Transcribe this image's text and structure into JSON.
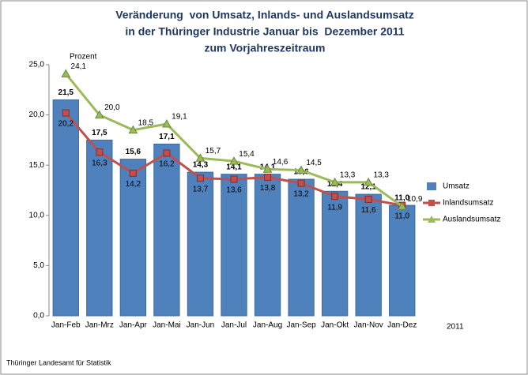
{
  "chart_data": {
    "type": "bar",
    "title": [
      "Veränderung  von Umsatz, Inlands- und Auslandsumsatz",
      "in der Thüringer Industrie Januar bis  Dezember 2011",
      "zum Vorjahreszeitraum"
    ],
    "y_label": "Prozent",
    "x_label": "2011",
    "source": "Thüringer Landesamt für Statistik",
    "categories": [
      "Jan-Feb",
      "Jan-Mrz",
      "Jan-Apr",
      "Jan-Mai",
      "Jan-Jun",
      "Jan-Jul",
      "Jan-Aug",
      "Jan-Sep",
      "Jan-Okt",
      "Jan-Nov",
      "Jan-Dez"
    ],
    "series": [
      {
        "name": "Umsatz",
        "type": "bar",
        "color": "#4f81bd",
        "values": [
          21.5,
          17.5,
          15.6,
          17.1,
          14.3,
          14.1,
          14.1,
          13.6,
          12.4,
          12.1,
          11.0
        ],
        "value_labels": [
          "21,5",
          "17,5",
          "15,6",
          "17,1",
          "14,3",
          "14,1",
          "14,1",
          "13,6",
          "12,4",
          "12,1",
          "11,0"
        ]
      },
      {
        "name": "Inlandsumsatz",
        "type": "line",
        "marker": "square",
        "color": "#c0504d",
        "values": [
          20.2,
          16.3,
          14.2,
          16.2,
          13.7,
          13.6,
          13.8,
          13.2,
          11.9,
          11.6,
          11.0
        ],
        "value_labels": [
          "20,2",
          "16,3",
          "14,2",
          "16,2",
          "13,7",
          "13,6",
          "13,8",
          "13,2",
          "11,9",
          "11,6",
          "11,0"
        ]
      },
      {
        "name": "Auslandsumsatz",
        "type": "line",
        "marker": "triangle",
        "color": "#9bbb59",
        "values": [
          24.1,
          20.0,
          18.5,
          19.1,
          15.7,
          15.4,
          14.6,
          14.5,
          13.3,
          13.3,
          10.9
        ],
        "value_labels": [
          "24,1",
          "20,0",
          "18,5",
          "19,1",
          "15,7",
          "15,4",
          "14,6",
          "14,5",
          "13,3",
          "13,3",
          "10,9"
        ]
      }
    ],
    "ylim": [
      0,
      25
    ],
    "yticks": [
      {
        "value": 0,
        "label": "0,0"
      },
      {
        "value": 5,
        "label": "5,0"
      },
      {
        "value": 10,
        "label": "10,0"
      },
      {
        "value": 15,
        "label": "15,0"
      },
      {
        "value": 20,
        "label": "20,0"
      },
      {
        "value": 25,
        "label": "25,0"
      }
    ],
    "grid": false
  }
}
